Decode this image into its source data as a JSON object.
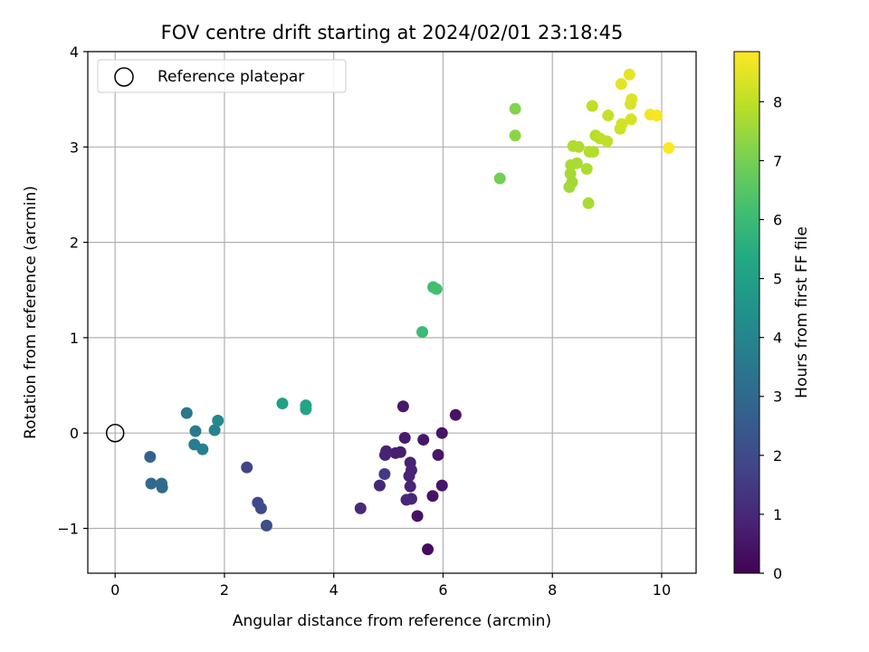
{
  "chart_data": {
    "type": "scatter",
    "title": "FOV centre drift starting at 2024/02/01 23:18:45",
    "xlabel": "Angular distance from reference (arcmin)",
    "ylabel": "Rotation from reference (arcmin)",
    "xlim": [
      -0.5,
      10.63
    ],
    "ylim": [
      -1.47,
      4.0
    ],
    "xticks": [
      0,
      2,
      4,
      6,
      8,
      10
    ],
    "yticks": [
      -1,
      0,
      1,
      2,
      3,
      4
    ],
    "grid": true,
    "legend": {
      "placement": "top-left",
      "entries": [
        "Reference platepar"
      ]
    },
    "reference_point": {
      "x": 0,
      "y": 0,
      "label": "Reference platepar"
    },
    "colorbar": {
      "label": "Hours from first FF file",
      "colormap": "viridis",
      "range": [
        0,
        8.85
      ],
      "ticks": [
        0,
        1,
        2,
        3,
        4,
        5,
        6,
        7,
        8
      ]
    },
    "points": [
      {
        "x": 5.72,
        "y": -1.22,
        "hours": 0.3
      },
      {
        "x": 5.53,
        "y": -0.87,
        "hours": 0.4
      },
      {
        "x": 5.81,
        "y": -0.66,
        "hours": 0.45
      },
      {
        "x": 5.98,
        "y": -0.55,
        "hours": 0.5
      },
      {
        "x": 5.91,
        "y": -0.23,
        "hours": 0.55
      },
      {
        "x": 5.98,
        "y": 0.0,
        "hours": 0.5
      },
      {
        "x": 6.23,
        "y": 0.19,
        "hours": 0.45
      },
      {
        "x": 5.64,
        "y": -0.07,
        "hours": 0.55
      },
      {
        "x": 5.27,
        "y": 0.28,
        "hours": 0.6
      },
      {
        "x": 5.3,
        "y": -0.05,
        "hours": 0.65
      },
      {
        "x": 5.22,
        "y": -0.2,
        "hours": 0.7
      },
      {
        "x": 5.13,
        "y": -0.21,
        "hours": 0.75
      },
      {
        "x": 4.96,
        "y": -0.19,
        "hours": 0.8
      },
      {
        "x": 4.94,
        "y": -0.23,
        "hours": 0.85
      },
      {
        "x": 5.4,
        "y": -0.31,
        "hours": 0.8
      },
      {
        "x": 5.42,
        "y": -0.39,
        "hours": 0.85
      },
      {
        "x": 5.38,
        "y": -0.45,
        "hours": 0.9
      },
      {
        "x": 5.4,
        "y": -0.56,
        "hours": 0.9
      },
      {
        "x": 5.42,
        "y": -0.69,
        "hours": 0.95
      },
      {
        "x": 5.33,
        "y": -0.7,
        "hours": 1.0
      },
      {
        "x": 4.84,
        "y": -0.55,
        "hours": 1.0
      },
      {
        "x": 4.49,
        "y": -0.79,
        "hours": 1.05
      },
      {
        "x": 4.93,
        "y": -0.43,
        "hours": 1.5
      },
      {
        "x": 2.41,
        "y": -0.36,
        "hours": 1.8
      },
      {
        "x": 2.61,
        "y": -0.73,
        "hours": 1.9
      },
      {
        "x": 2.67,
        "y": -0.79,
        "hours": 2.0
      },
      {
        "x": 2.77,
        "y": -0.97,
        "hours": 2.1
      },
      {
        "x": 0.64,
        "y": -0.25,
        "hours": 2.8
      },
      {
        "x": 0.66,
        "y": -0.53,
        "hours": 3.0
      },
      {
        "x": 0.85,
        "y": -0.53,
        "hours": 3.1
      },
      {
        "x": 0.86,
        "y": -0.57,
        "hours": 3.0
      },
      {
        "x": 1.31,
        "y": 0.21,
        "hours": 3.5
      },
      {
        "x": 1.47,
        "y": 0.02,
        "hours": 3.6
      },
      {
        "x": 1.45,
        "y": -0.12,
        "hours": 3.7
      },
      {
        "x": 1.6,
        "y": -0.17,
        "hours": 3.8
      },
      {
        "x": 1.82,
        "y": 0.03,
        "hours": 4.0
      },
      {
        "x": 1.88,
        "y": 0.13,
        "hours": 4.1
      },
      {
        "x": 3.06,
        "y": 0.31,
        "hours": 5.0
      },
      {
        "x": 3.49,
        "y": 0.29,
        "hours": 5.1
      },
      {
        "x": 3.49,
        "y": 0.25,
        "hours": 5.2
      },
      {
        "x": 5.62,
        "y": 1.06,
        "hours": 6.0
      },
      {
        "x": 5.82,
        "y": 1.53,
        "hours": 6.1
      },
      {
        "x": 5.88,
        "y": 1.51,
        "hours": 6.2
      },
      {
        "x": 7.04,
        "y": 2.67,
        "hours": 7.0
      },
      {
        "x": 7.32,
        "y": 3.4,
        "hours": 7.2
      },
      {
        "x": 7.32,
        "y": 3.12,
        "hours": 7.3
      },
      {
        "x": 8.31,
        "y": 2.58,
        "hours": 7.6
      },
      {
        "x": 8.36,
        "y": 2.63,
        "hours": 7.6
      },
      {
        "x": 8.33,
        "y": 2.72,
        "hours": 7.65
      },
      {
        "x": 8.34,
        "y": 2.81,
        "hours": 7.7
      },
      {
        "x": 8.45,
        "y": 2.83,
        "hours": 7.7
      },
      {
        "x": 8.63,
        "y": 2.77,
        "hours": 7.75
      },
      {
        "x": 8.66,
        "y": 2.41,
        "hours": 7.7
      },
      {
        "x": 8.38,
        "y": 3.01,
        "hours": 7.8
      },
      {
        "x": 8.48,
        "y": 3.0,
        "hours": 7.8
      },
      {
        "x": 8.68,
        "y": 2.95,
        "hours": 7.85
      },
      {
        "x": 8.75,
        "y": 2.95,
        "hours": 7.85
      },
      {
        "x": 8.79,
        "y": 3.12,
        "hours": 7.9
      },
      {
        "x": 8.87,
        "y": 3.09,
        "hours": 7.95
      },
      {
        "x": 9.0,
        "y": 3.06,
        "hours": 8.0
      },
      {
        "x": 8.73,
        "y": 3.43,
        "hours": 8.0
      },
      {
        "x": 9.02,
        "y": 3.33,
        "hours": 8.1
      },
      {
        "x": 9.24,
        "y": 3.19,
        "hours": 8.2
      },
      {
        "x": 9.27,
        "y": 3.24,
        "hours": 8.25
      },
      {
        "x": 9.44,
        "y": 3.29,
        "hours": 8.3
      },
      {
        "x": 9.43,
        "y": 3.45,
        "hours": 8.35
      },
      {
        "x": 9.45,
        "y": 3.5,
        "hours": 8.4
      },
      {
        "x": 9.26,
        "y": 3.66,
        "hours": 8.5
      },
      {
        "x": 9.41,
        "y": 3.76,
        "hours": 8.55
      },
      {
        "x": 9.79,
        "y": 3.34,
        "hours": 8.7
      },
      {
        "x": 9.91,
        "y": 3.33,
        "hours": 8.75
      },
      {
        "x": 10.13,
        "y": 2.99,
        "hours": 8.85
      }
    ]
  }
}
